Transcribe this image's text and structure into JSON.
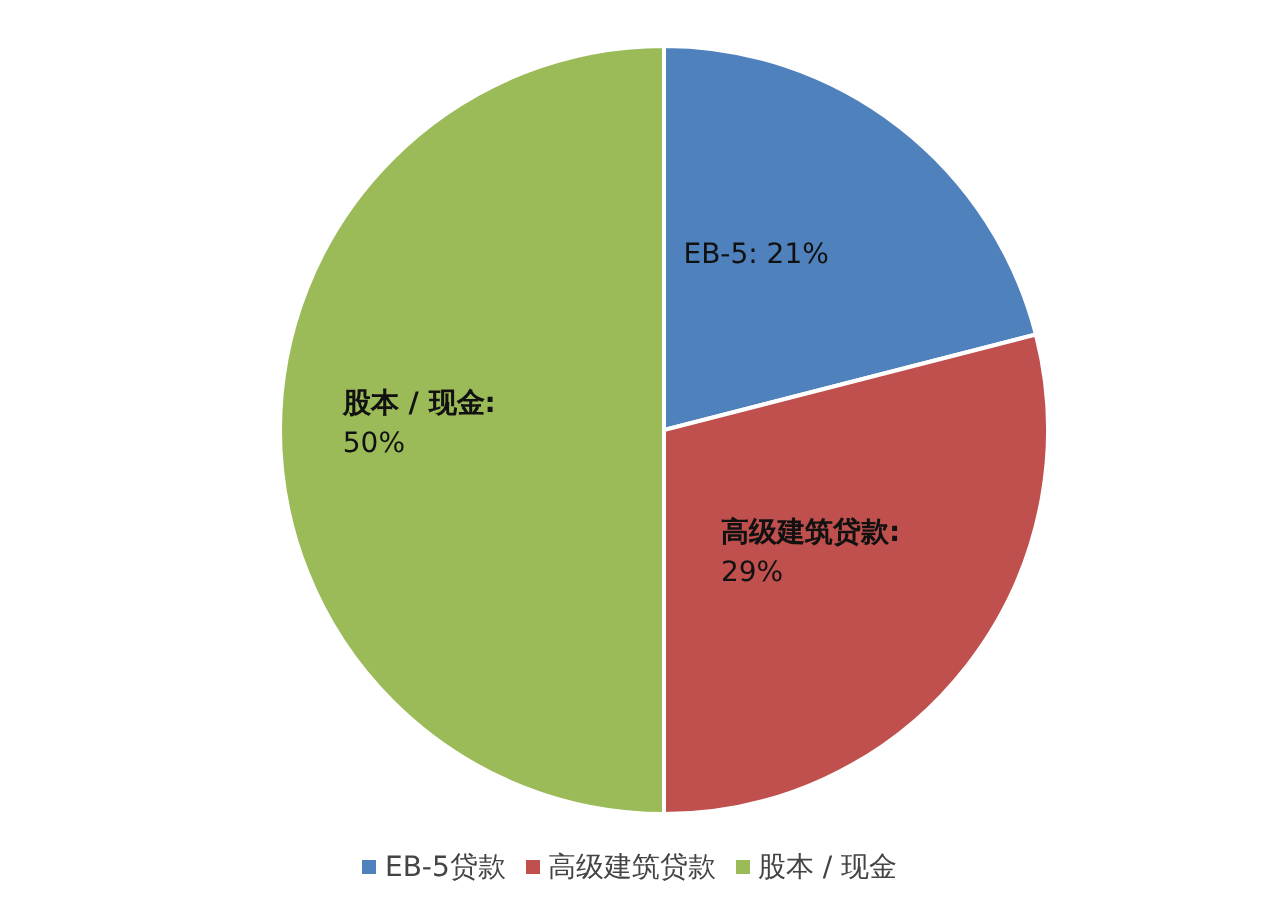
{
  "chart_data": {
    "type": "pie",
    "categories": [
      "EB-5贷款",
      "高级建筑贷款",
      "股本 / 现金"
    ],
    "values": [
      21,
      29,
      50
    ],
    "colors": [
      "#4f81bd",
      "#c0504d",
      "#9bbb59"
    ],
    "value_labels": [
      "EB-5: 21%",
      "高级建筑贷款: 29%",
      "股本 / 现金: 50%"
    ],
    "legend": "bottom"
  }
}
